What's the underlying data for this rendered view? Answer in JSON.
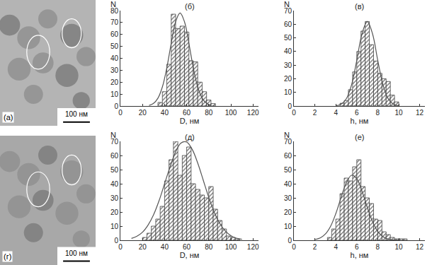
{
  "chart_data": [
    {
      "type": "histogram",
      "title": "(б)",
      "x_label": "D, нм",
      "y_label": "N",
      "bins": [
        34,
        38,
        42,
        46,
        50,
        54,
        58,
        62,
        66,
        70,
        74,
        78,
        82,
        86
      ],
      "counts": [
        3,
        12,
        35,
        77,
        65,
        67,
        62,
        38,
        37,
        20,
        12,
        5,
        2
      ],
      "color": "#444444",
      "curve": {
        "type": "line",
        "color": "#555555",
        "x": [
          26,
          30,
          34,
          38,
          42,
          46,
          50,
          54,
          58,
          62,
          66,
          70,
          74,
          78,
          82
        ],
        "values": [
          0.5,
          2.2,
          6.6,
          16,
          32,
          52.6,
          70.7,
          78,
          70.7,
          52.6,
          32,
          16,
          6.6,
          2.2,
          0.6
        ]
      },
      "xlim": [
        0,
        125
      ],
      "xticks": [
        0,
        20,
        40,
        60,
        80,
        100,
        120
      ],
      "ylim": [
        0,
        80
      ],
      "yticks": [
        0,
        10,
        20,
        30,
        40,
        50,
        60,
        70,
        80
      ],
      "grid": false
    },
    {
      "type": "histogram",
      "title": "(в)",
      "x_label": "h, нм",
      "y_label": "N",
      "bins": [
        4.4,
        4.8,
        5.2,
        5.6,
        6.0,
        6.4,
        6.8,
        7.2,
        7.6,
        8.0,
        8.4,
        8.8,
        9.2,
        9.6,
        10.0
      ],
      "counts": [
        2,
        4,
        12,
        25,
        40,
        55,
        62,
        45,
        33,
        24,
        20,
        18,
        8,
        3
      ],
      "color": "#444444",
      "curve": {
        "type": "line",
        "color": "#555555",
        "x": [
          4,
          4.5,
          5,
          5.5,
          6,
          6.5,
          7,
          7.5,
          8,
          8.5,
          9,
          9.5,
          10
        ],
        "values": [
          0.2,
          1.3,
          5.3,
          15.5,
          33.5,
          53,
          62,
          53,
          33.5,
          15.5,
          5.3,
          1.3,
          0.2
        ]
      },
      "xlim": [
        0,
        12.5
      ],
      "xticks": [
        0,
        2,
        4,
        6,
        8,
        10,
        12
      ],
      "ylim": [
        0,
        70
      ],
      "yticks": [
        0,
        10,
        20,
        30,
        40,
        50,
        60,
        70
      ],
      "grid": false
    },
    {
      "type": "histogram",
      "title": "(д)",
      "x_label": "D, нм",
      "y_label": "N",
      "bins": [
        20,
        24,
        28,
        32,
        36,
        40,
        44,
        48,
        52,
        56,
        60,
        64,
        68,
        72,
        76,
        80,
        84,
        88,
        92,
        96,
        100,
        104,
        108
      ],
      "counts": [
        2,
        5,
        10,
        15,
        24,
        42,
        57,
        70,
        46,
        60,
        66,
        40,
        36,
        32,
        30,
        38,
        22,
        14,
        8,
        3,
        2,
        1
      ],
      "color": "#444444",
      "curve": {
        "type": "line",
        "color": "#555555",
        "x": [
          10,
          15,
          20,
          25,
          30,
          35,
          40,
          45,
          50,
          55,
          60,
          65,
          70,
          75,
          80,
          85,
          90,
          95,
          100,
          105,
          110
        ],
        "values": [
          1.3,
          2.9,
          5.7,
          10.7,
          18,
          28,
          40,
          52,
          62.6,
          68.9,
          69.5,
          64.3,
          54.6,
          42.5,
          30.3,
          19.8,
          11.9,
          6.6,
          3.3,
          1.5,
          0.7
        ]
      },
      "xlim": [
        0,
        125
      ],
      "xticks": [
        0,
        20,
        40,
        60,
        80,
        100,
        120
      ],
      "ylim": [
        0,
        70
      ],
      "yticks": [
        0,
        10,
        20,
        30,
        40,
        50,
        60,
        70
      ],
      "grid": false
    },
    {
      "type": "histogram",
      "title": "(е)",
      "x_label": "h, нм",
      "y_label": "N",
      "bins": [
        3.2,
        3.6,
        4.0,
        4.4,
        4.8,
        5.2,
        5.6,
        6.0,
        6.4,
        6.8,
        7.2,
        7.6,
        8.0,
        8.4,
        8.8,
        9.2,
        9.6,
        10.0,
        10.4,
        10.8
      ],
      "counts": [
        2,
        8,
        15,
        33,
        44,
        42,
        52,
        57,
        38,
        30,
        26,
        15,
        14,
        6,
        4,
        2,
        1,
        1,
        1
      ],
      "color": "#444444",
      "curve": {
        "type": "line",
        "color": "#555555",
        "x": [
          2,
          2.5,
          3,
          3.5,
          4,
          4.5,
          5,
          5.5,
          6,
          6.5,
          7,
          7.5,
          8,
          8.5,
          9,
          9.5,
          10
        ],
        "values": [
          0.5,
          1.6,
          4.4,
          9.9,
          18.9,
          30.2,
          40.6,
          46,
          43.5,
          34.7,
          23.3,
          13.2,
          6.2,
          2.5,
          0.8,
          0.2,
          0.1
        ]
      },
      "xlim": [
        0,
        12.5
      ],
      "xticks": [
        0,
        2,
        4,
        6,
        8,
        10,
        12
      ],
      "ylim": [
        0,
        70
      ],
      "yticks": [
        0,
        10,
        20,
        30,
        40,
        50,
        60,
        70
      ],
      "grid": false
    }
  ],
  "images": [
    {
      "label": "(а)",
      "scale_bar": "100 нм"
    },
    {
      "label": "(г)",
      "scale_bar": "100 нм"
    }
  ]
}
